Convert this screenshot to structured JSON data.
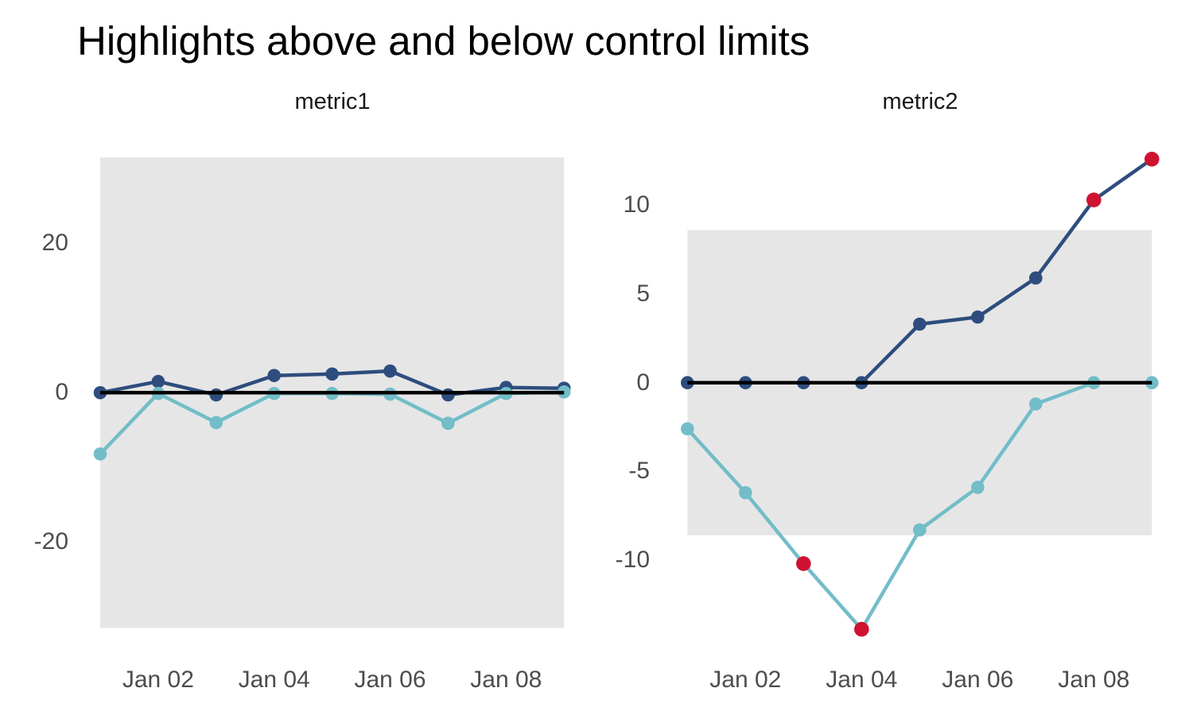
{
  "title": "Highlights above and below control limits",
  "style": {
    "series1_color": "#2e4d7e",
    "series2_color": "#72bdc8",
    "out_of_limit_color": "#d01231",
    "band_color": "#e6e6e6",
    "center_line_color": "#000000",
    "tick_text_color": "#4d4d4d"
  },
  "chart_data": [
    {
      "type": "line",
      "title": "metric1",
      "x": [
        "Jan 01",
        "Jan 02",
        "Jan 03",
        "Jan 04",
        "Jan 05",
        "Jan 06",
        "Jan 07",
        "Jan 08",
        "Jan 09"
      ],
      "x_tick_labels": [
        "Jan 02",
        "Jan 04",
        "Jan 06",
        "Jan 08"
      ],
      "x_tick_day_index": [
        1,
        3,
        5,
        7
      ],
      "y_ticks": [
        20,
        0,
        -20
      ],
      "ylim": [
        -31.6,
        31.6
      ],
      "center_line": 0,
      "control_limits": {
        "lower": -31.5,
        "upper": 31.5
      },
      "grid": false,
      "legend": "none",
      "series": [
        {
          "name": "series1",
          "values": [
            0.0,
            1.5,
            -0.3,
            2.3,
            2.5,
            2.9,
            -0.3,
            0.7,
            0.6
          ],
          "flagged": [
            false,
            false,
            false,
            false,
            false,
            false,
            false,
            false,
            false
          ]
        },
        {
          "name": "series2",
          "values": [
            -8.2,
            -0.1,
            -4.0,
            -0.1,
            -0.1,
            -0.2,
            -4.1,
            -0.1,
            0.1
          ],
          "flagged": [
            false,
            false,
            false,
            false,
            false,
            false,
            false,
            false,
            false
          ]
        }
      ]
    },
    {
      "type": "line",
      "title": "metric2",
      "x": [
        "Jan 01",
        "Jan 02",
        "Jan 03",
        "Jan 04",
        "Jan 05",
        "Jan 06",
        "Jan 07",
        "Jan 08",
        "Jan 09"
      ],
      "x_tick_labels": [
        "Jan 02",
        "Jan 04",
        "Jan 06",
        "Jan 08"
      ],
      "x_tick_day_index": [
        1,
        3,
        5,
        7
      ],
      "y_ticks": [
        10,
        5,
        0,
        -5,
        -10
      ],
      "ylim": [
        -14.5,
        13.5
      ],
      "center_line": 0,
      "control_limits": {
        "lower": -8.6,
        "upper": 8.6
      },
      "grid": false,
      "legend": "none",
      "series": [
        {
          "name": "series1",
          "values": [
            0.0,
            0.0,
            0.0,
            0.0,
            3.3,
            3.7,
            5.9,
            10.3,
            12.6
          ],
          "flagged": [
            false,
            false,
            false,
            false,
            false,
            false,
            false,
            true,
            true
          ]
        },
        {
          "name": "series2",
          "values": [
            -2.6,
            -6.2,
            -10.2,
            -13.9,
            -8.3,
            -5.9,
            -1.2,
            0.0,
            0.0
          ],
          "flagged": [
            false,
            false,
            true,
            true,
            false,
            false,
            false,
            false,
            false
          ]
        }
      ]
    }
  ]
}
